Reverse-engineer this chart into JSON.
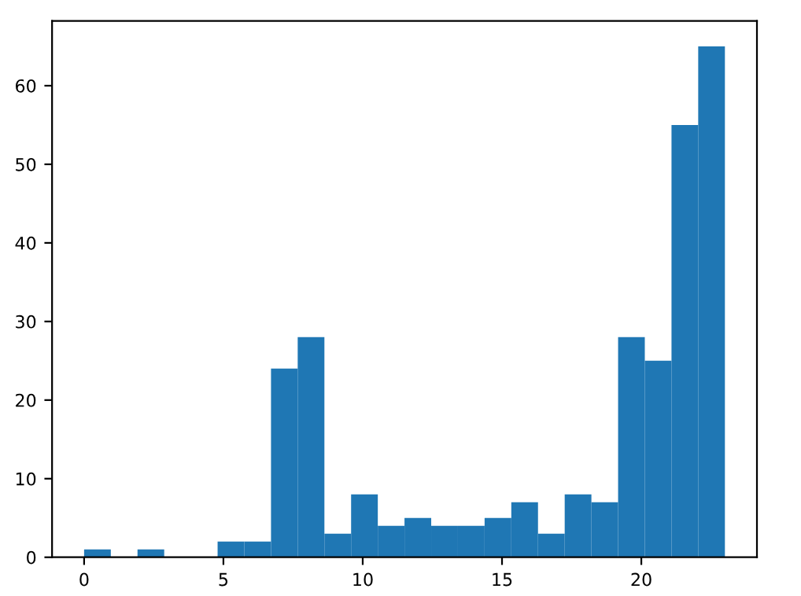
{
  "chart_data": {
    "type": "histogram",
    "bins": [
      0,
      0.9583,
      1.9167,
      2.875,
      3.8333,
      4.7917,
      5.75,
      6.7083,
      7.6667,
      8.625,
      9.5833,
      10.5417,
      11.5,
      12.4583,
      13.4167,
      14.375,
      15.3333,
      16.2917,
      17.25,
      18.2083,
      19.1667,
      20.125,
      21.0833,
      22.0417,
      23
    ],
    "values": [
      1,
      0,
      1,
      0,
      0,
      2,
      2,
      24,
      28,
      3,
      8,
      4,
      5,
      4,
      4,
      5,
      7,
      3,
      8,
      7,
      28,
      25,
      55,
      65
    ],
    "color": "#1f77b4",
    "xlim": [
      -1.15,
      24.15
    ],
    "ylim": [
      0,
      68.25
    ],
    "xticks": [
      0,
      5,
      10,
      15,
      20
    ],
    "yticks": [
      0,
      10,
      20,
      30,
      40,
      50,
      60
    ],
    "grid": false
  }
}
